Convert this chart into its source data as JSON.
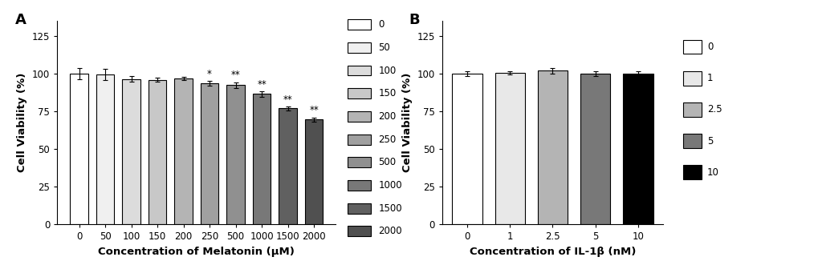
{
  "panel_A": {
    "categories": [
      "0",
      "50",
      "100",
      "150",
      "200",
      "250",
      "500",
      "1000",
      "1500",
      "2000"
    ],
    "values": [
      100.0,
      99.3,
      96.5,
      96.0,
      97.0,
      93.5,
      92.5,
      86.5,
      77.0,
      69.5
    ],
    "errors": [
      3.5,
      3.8,
      1.8,
      1.2,
      1.0,
      1.5,
      1.8,
      1.8,
      1.2,
      1.5
    ],
    "colors": [
      "#FFFFFF",
      "#F0F0F0",
      "#DCDCDC",
      "#C8C8C8",
      "#B4B4B4",
      "#A0A0A0",
      "#909090",
      "#787878",
      "#606060",
      "#505050"
    ],
    "significance": [
      "",
      "",
      "",
      "",
      "",
      "*",
      "**",
      "**",
      "**",
      "**"
    ],
    "xlabel": "Concentration of Melatonin (μM)",
    "ylabel": "Cell Viability (%)",
    "legend_labels": [
      "0",
      "50",
      "100",
      "150",
      "200",
      "250",
      "500",
      "1000",
      "1500",
      "2000"
    ],
    "legend_colors": [
      "#FFFFFF",
      "#F0F0F0",
      "#DCDCDC",
      "#C8C8C8",
      "#B4B4B4",
      "#A0A0A0",
      "#909090",
      "#787878",
      "#606060",
      "#505050"
    ],
    "ylim": [
      0,
      135
    ],
    "yticks": [
      0,
      25,
      50,
      75,
      100,
      125
    ],
    "panel_label": "A"
  },
  "panel_B": {
    "categories": [
      "0",
      "1",
      "2.5",
      "5",
      "10"
    ],
    "values": [
      100.0,
      100.5,
      102.0,
      100.0,
      100.0
    ],
    "errors": [
      1.5,
      1.2,
      1.8,
      1.5,
      1.8
    ],
    "colors": [
      "#FFFFFF",
      "#E8E8E8",
      "#B4B4B4",
      "#787878",
      "#000000"
    ],
    "significance": [
      "",
      "",
      "",
      "",
      ""
    ],
    "xlabel": "Concentration of IL-1β (nM)",
    "ylabel": "Cell Viability (%)",
    "legend_labels": [
      "0",
      "1",
      "2.5",
      "5",
      "10"
    ],
    "legend_colors": [
      "#FFFFFF",
      "#E8E8E8",
      "#B4B4B4",
      "#787878",
      "#000000"
    ],
    "ylim": [
      0,
      135
    ],
    "yticks": [
      0,
      25,
      50,
      75,
      100,
      125
    ],
    "panel_label": "B"
  },
  "figure_bg": "#FFFFFF",
  "bar_edge_color": "#000000",
  "bar_edge_width": 0.8,
  "axis_fontsize": 8.5,
  "label_fontsize": 9.5,
  "legend_fontsize": 8.5,
  "sig_fontsize": 8.5,
  "panel_label_fontsize": 13
}
